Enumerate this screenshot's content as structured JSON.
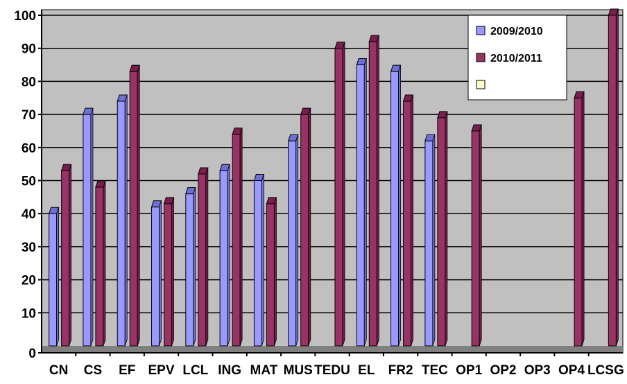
{
  "chart_data": {
    "type": "bar",
    "title": "",
    "xlabel": "",
    "ylabel": "",
    "ylim": [
      0,
      100
    ],
    "yticks": [
      0,
      10,
      20,
      30,
      40,
      50,
      60,
      70,
      80,
      90,
      100
    ],
    "grid": true,
    "legend_position": "top-right",
    "categories": [
      "CN",
      "CS",
      "EF",
      "EPV",
      "LCL",
      "ING",
      "MAT",
      "MUS",
      "TEDU",
      "EL",
      "FR2",
      "TEC",
      "OP1",
      "OP2",
      "OP3",
      "OP4",
      "LCSG"
    ],
    "series": [
      {
        "name": "2009/2010",
        "color": "#9999FF",
        "top_color": "#6F6FD8",
        "values": [
          40,
          70,
          74,
          42,
          46,
          53,
          50,
          62,
          null,
          85,
          83,
          62,
          null,
          null,
          null,
          null,
          null
        ]
      },
      {
        "name": "2010/2011",
        "color": "#993366",
        "top_color": "#7A1F4D",
        "values": [
          53,
          48,
          83,
          43,
          52,
          64,
          43,
          70,
          90,
          92,
          74,
          69,
          65,
          null,
          null,
          75,
          100
        ]
      },
      {
        "name": "",
        "color": "#FFFFCC",
        "top_color": "#E5E5A0",
        "values": [
          null,
          null,
          null,
          null,
          null,
          null,
          null,
          null,
          null,
          null,
          null,
          null,
          null,
          null,
          null,
          null,
          null
        ]
      }
    ],
    "plot_background": "#C0C0C0",
    "floor_color": "#808080"
  }
}
